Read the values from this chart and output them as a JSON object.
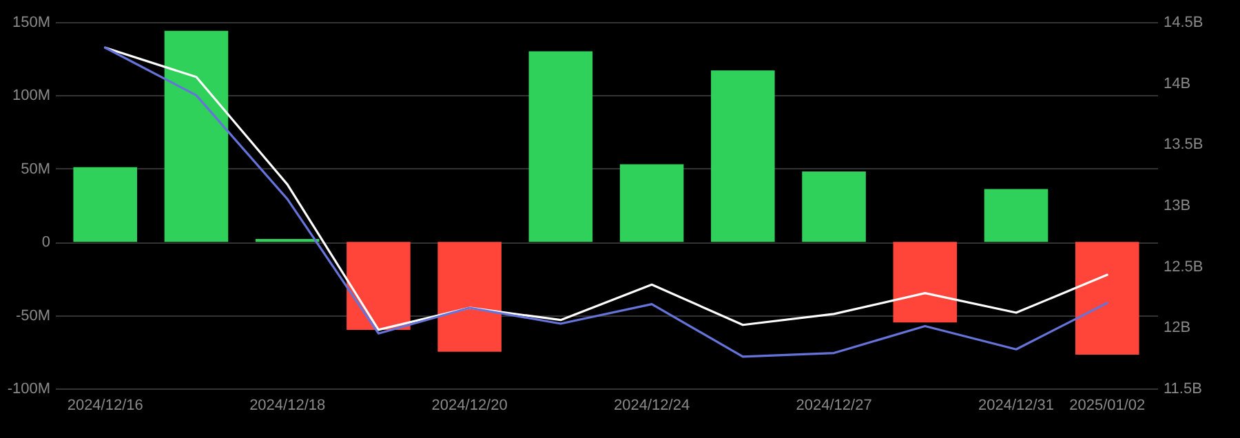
{
  "chart_data": {
    "type": "bar",
    "categories": [
      "2024/12/16",
      null,
      "2024/12/18",
      null,
      "2024/12/20",
      null,
      "2024/12/24",
      null,
      "2024/12/27",
      null,
      "2024/12/31",
      "2025/01/02"
    ],
    "series": [
      {
        "values": [
          51,
          144,
          2,
          -60,
          -75,
          130,
          53,
          117,
          48,
          -55,
          36,
          -77
        ],
        "colors": [
          "#2fd15a",
          "#2fd15a",
          "#2fd15a",
          "#ff4539",
          "#ff4539",
          "#2fd15a",
          "#2fd15a",
          "#2fd15a",
          "#2fd15a",
          "#ff4539",
          "#2fd15a",
          "#ff4539"
        ]
      },
      {
        "type": "line",
        "axis": "y2",
        "color": "#ffffff",
        "values": [
          14.29,
          14.05,
          13.17,
          11.98,
          12.16,
          12.06,
          12.35,
          12.02,
          12.11,
          12.28,
          12.12,
          12.43
        ]
      },
      {
        "type": "line",
        "axis": "y2",
        "color": "#6674d9",
        "values": [
          14.29,
          13.9,
          13.05,
          11.95,
          12.16,
          12.03,
          12.19,
          11.76,
          11.79,
          12.01,
          11.82,
          12.2
        ]
      }
    ],
    "ylim": [
      -100,
      150
    ],
    "yticks": [
      {
        "value": -100,
        "label": "-100M"
      },
      {
        "value": -50,
        "label": "-50M"
      },
      {
        "value": 0,
        "label": "0"
      },
      {
        "value": 50,
        "label": "50M"
      },
      {
        "value": 100,
        "label": "100M"
      },
      {
        "value": 150,
        "label": "150M"
      }
    ],
    "y2lim": [
      11.5,
      14.5
    ],
    "y2ticks": [
      {
        "value": 11.5,
        "label": "11.5B"
      },
      {
        "value": 12,
        "label": "12B"
      },
      {
        "value": 12.5,
        "label": "12.5B"
      },
      {
        "value": 13,
        "label": "13B"
      },
      {
        "value": 13.5,
        "label": "13.5B"
      },
      {
        "value": 14,
        "label": "14B"
      },
      {
        "value": 14.5,
        "label": "14.5B"
      }
    ],
    "grid": "y"
  }
}
